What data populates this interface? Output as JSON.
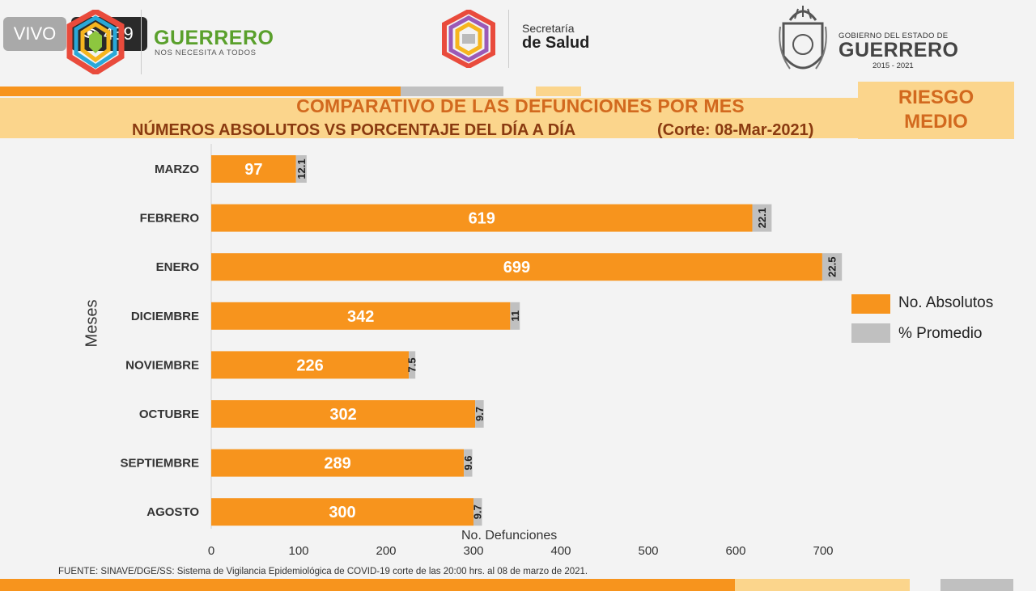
{
  "overlay": {
    "live_label": "VIVO",
    "viewer_count": "459"
  },
  "header": {
    "brand_title": "GUERRERO",
    "brand_subtitle": "NOS NECESITA A TODOS",
    "secretaria_line1": "Secretaría",
    "secretaria_line2": "de Salud",
    "gov_line1": "GOBIERNO DEL ESTADO DE",
    "gov_line2": "GUERRERO",
    "gov_line3": "2015 - 2021"
  },
  "title": {
    "line1": "COMPARATIVO DE LAS DEFUNCIONES POR MES",
    "line2": "NÚMEROS ABSOLUTOS VS PORCENTAJE DEL DÍA A DÍA",
    "cutoff": "(Corte: 08-Mar-2021)"
  },
  "risk": {
    "line1": "RIESGO",
    "line2": "MEDIO"
  },
  "footer": {
    "source": "FUENTE: SINAVE/DGE/SS: Sistema de Vigilancia Epidemiológica de COVID-19 corte de las 20:00 hrs. al 08 de  marzo de 2021."
  },
  "colors": {
    "absolute": "#f7941d",
    "average": "#c0c0c0",
    "title_orange": "#d2691e",
    "title_band": "#fbd58c",
    "brand_green": "#5aa02c"
  },
  "chart_data": {
    "type": "bar",
    "orientation": "horizontal",
    "stacked": true,
    "categories": [
      "MARZO",
      "FEBRERO",
      "ENERO",
      "DICIEMBRE",
      "NOVIEMBRE",
      "OCTUBRE",
      "SEPTIEMBRE",
      "AGOSTO"
    ],
    "series": [
      {
        "name": "No. Absolutos",
        "values": [
          97,
          619,
          699,
          342,
          226,
          302,
          289,
          300
        ],
        "labels": [
          "97",
          "619",
          "699",
          "342",
          "226",
          "302",
          "289",
          "300"
        ],
        "color": "#f7941d"
      },
      {
        "name": "% Promedio",
        "values": [
          12.1,
          22.1,
          22.5,
          11,
          7.5,
          9.7,
          9.6,
          9.7
        ],
        "labels": [
          "12.1",
          "22.1",
          "22.5",
          "11",
          "7.5",
          "9.7",
          "9.6",
          "9.7"
        ],
        "color": "#c0c0c0"
      }
    ],
    "xlabel": "No. Defunciones",
    "ylabel": "Meses",
    "xlim": [
      0,
      700
    ],
    "xticks": [
      "0",
      "100",
      "200",
      "300",
      "400",
      "500",
      "600",
      "700"
    ],
    "grid": false,
    "legend": "right"
  }
}
